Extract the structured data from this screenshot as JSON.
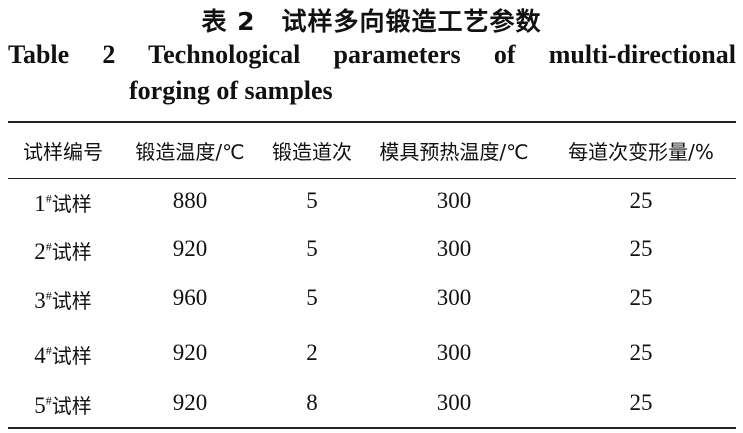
{
  "caption": {
    "cn": "表 2　试样多向锻造工艺参数",
    "en_line1": "Table 2  Technological parameters of multi-directional",
    "en_line2": "forging of samples"
  },
  "table": {
    "headers": [
      "试样编号",
      "锻造温度/℃",
      "锻造道次",
      "模具预热温度/℃",
      "每道次变形量/%"
    ],
    "rows": [
      {
        "id": "1",
        "suffix": "试样",
        "temp": "880",
        "passes": "5",
        "die": "300",
        "deform": "25"
      },
      {
        "id": "2",
        "suffix": "试样",
        "temp": "920",
        "passes": "5",
        "die": "300",
        "deform": "25"
      },
      {
        "id": "3",
        "suffix": "试样",
        "temp": "960",
        "passes": "5",
        "die": "300",
        "deform": "25"
      },
      {
        "id": "4",
        "suffix": "试样",
        "temp": "920",
        "passes": "2",
        "die": "300",
        "deform": "25"
      },
      {
        "id": "5",
        "suffix": "试样",
        "temp": "920",
        "passes": "8",
        "die": "300",
        "deform": "25"
      }
    ]
  }
}
